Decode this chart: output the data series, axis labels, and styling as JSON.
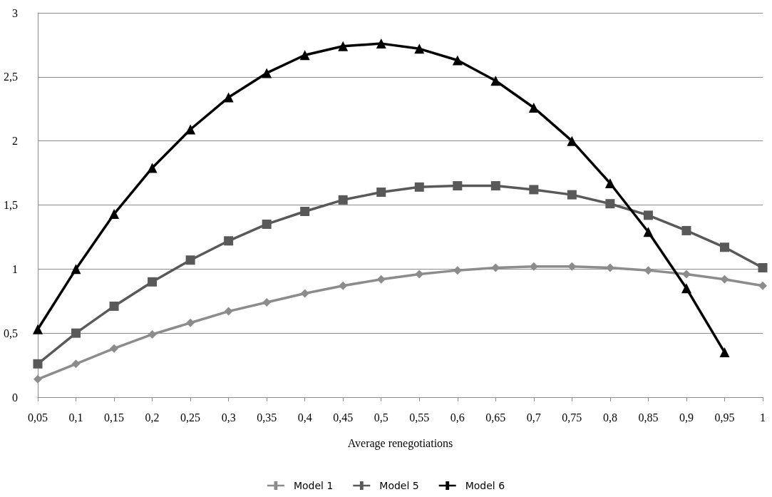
{
  "chart_data": {
    "type": "line",
    "xlabel": "Average renegotiations",
    "categories": [
      "0,05",
      "0,1",
      "0,15",
      "0,2",
      "0,25",
      "0,3",
      "0,35",
      "0,4",
      "0,45",
      "0,5",
      "0,55",
      "0,6",
      "0,65",
      "0,7",
      "0,75",
      "0,8",
      "0,85",
      "0,9",
      "0,95",
      "1"
    ],
    "series": [
      {
        "name": "Model 1",
        "color": "#8c8c8c",
        "marker": "diamond",
        "values": [
          0.14,
          0.26,
          0.38,
          0.49,
          0.58,
          0.67,
          0.74,
          0.81,
          0.87,
          0.92,
          0.96,
          0.99,
          1.01,
          1.02,
          1.02,
          1.01,
          0.99,
          0.96,
          0.92,
          0.87
        ]
      },
      {
        "name": "Model 5",
        "color": "#595959",
        "marker": "square",
        "values": [
          0.26,
          0.5,
          0.71,
          0.9,
          1.07,
          1.22,
          1.35,
          1.45,
          1.54,
          1.6,
          1.64,
          1.65,
          1.65,
          1.62,
          1.58,
          1.51,
          1.42,
          1.3,
          1.17,
          1.01
        ]
      },
      {
        "name": "Model 6",
        "color": "#000000",
        "marker": "triangle",
        "values": [
          0.53,
          1.0,
          1.43,
          1.79,
          2.09,
          2.34,
          2.53,
          2.67,
          2.74,
          2.76,
          2.72,
          2.63,
          2.47,
          2.26,
          2.0,
          1.67,
          1.29,
          0.85,
          0.35,
          null
        ]
      }
    ],
    "ylim": [
      0,
      3
    ],
    "yticks": [
      0,
      {
        "value": 0.5,
        "label": "0,5"
      },
      1,
      {
        "value": 1.5,
        "label": "1,5"
      },
      2,
      {
        "value": 2.5,
        "label": "2,5"
      },
      3
    ],
    "grid": "y",
    "legend": "bottom",
    "line_style": "solid"
  }
}
